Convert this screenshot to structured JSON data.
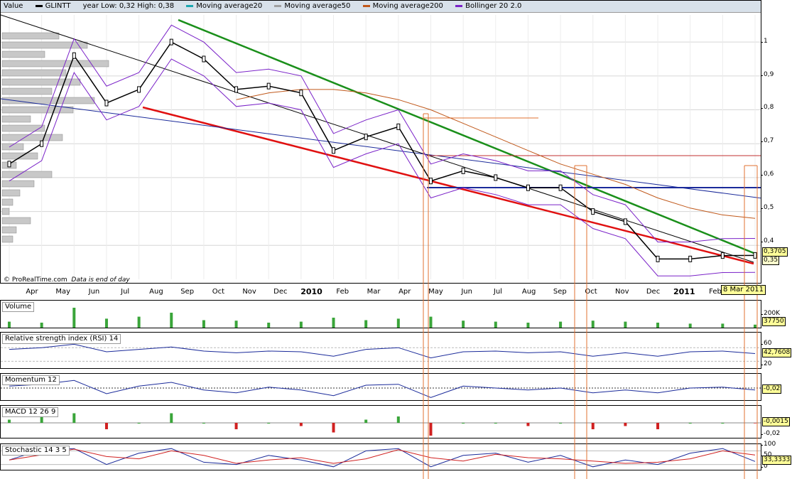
{
  "legend": {
    "value_label": "Value",
    "items": [
      {
        "label": "GLINTT",
        "color": "#000000"
      },
      {
        "label": "year Low: 0,32 High: 0,38",
        "color": ""
      },
      {
        "label": "Moving average20",
        "color": "#1aa7b0"
      },
      {
        "label": "Moving average50",
        "color": "#a0a0a0"
      },
      {
        "label": "Moving average200",
        "color": "#c0581a"
      },
      {
        "label": "Bollinger 20 2.0",
        "color": "#7a22c8"
      }
    ]
  },
  "credit": {
    "brand": "© ProRealTime.com",
    "note": "Data is end of day"
  },
  "date_marker": "8 Mar 2011",
  "price_axis": [
    "1",
    "0,9",
    "0,8",
    "0,7",
    "0,6",
    "0,5",
    "0,4"
  ],
  "price_values": {
    "last": "0,3705",
    "low": "0,35"
  },
  "x_labels": [
    {
      "label": "Apr",
      "year": false
    },
    {
      "label": "May",
      "year": false
    },
    {
      "label": "Jun",
      "year": false
    },
    {
      "label": "Jul",
      "year": false
    },
    {
      "label": "Aug",
      "year": false
    },
    {
      "label": "Sep",
      "year": false
    },
    {
      "label": "Oct",
      "year": false
    },
    {
      "label": "Nov",
      "year": false
    },
    {
      "label": "Dec",
      "year": false
    },
    {
      "label": "2010",
      "year": true
    },
    {
      "label": "Feb",
      "year": false
    },
    {
      "label": "Mar",
      "year": false
    },
    {
      "label": "Apr",
      "year": false
    },
    {
      "label": "May",
      "year": false
    },
    {
      "label": "Jun",
      "year": false
    },
    {
      "label": "Jul",
      "year": false
    },
    {
      "label": "Aug",
      "year": false
    },
    {
      "label": "Sep",
      "year": false
    },
    {
      "label": "Oct",
      "year": false
    },
    {
      "label": "Nov",
      "year": false
    },
    {
      "label": "Dec",
      "year": false
    },
    {
      "label": "2011",
      "year": true
    },
    {
      "label": "Feb",
      "year": false
    }
  ],
  "panes": {
    "volume": {
      "title": "Volume",
      "axis": [
        "200K"
      ],
      "value": "37750"
    },
    "rsi": {
      "title": "Relative strength index (RSI) 14",
      "axis": [
        "60",
        "20"
      ],
      "value": "42,7608"
    },
    "momentum": {
      "title": "Momentum 12",
      "axis": [],
      "value": "-0,02"
    },
    "macd": {
      "title": "MACD 12 26 9",
      "axis": [
        "-0,02"
      ],
      "value": "-0,0015"
    },
    "stochastic": {
      "title": "Stochastic 14 3 5",
      "axis": [
        "100",
        "50",
        "0"
      ],
      "value": "33,3333"
    }
  },
  "chart_data": {
    "type": "line",
    "title": "GLINTT",
    "ylim": [
      0.3,
      1.08
    ],
    "x": [
      "2009-04",
      "2009-05",
      "2009-06",
      "2009-07",
      "2009-08",
      "2009-09",
      "2009-10",
      "2009-11",
      "2009-12",
      "2010-01",
      "2010-02",
      "2010-03",
      "2010-04",
      "2010-05",
      "2010-06",
      "2010-07",
      "2010-08",
      "2010-09",
      "2010-10",
      "2010-11",
      "2010-12",
      "2011-01",
      "2011-02",
      "2011-03"
    ],
    "series": [
      {
        "name": "GLINTT",
        "values": [
          0.64,
          0.7,
          0.96,
          0.82,
          0.86,
          1.0,
          0.95,
          0.86,
          0.87,
          0.85,
          0.68,
          0.72,
          0.75,
          0.59,
          0.62,
          0.6,
          0.57,
          0.57,
          0.5,
          0.47,
          0.36,
          0.36,
          0.37,
          0.3705
        ]
      },
      {
        "name": "Moving average200",
        "values": [
          null,
          null,
          null,
          null,
          null,
          null,
          null,
          0.83,
          0.85,
          0.86,
          0.86,
          0.85,
          0.83,
          0.8,
          0.76,
          0.72,
          0.68,
          0.64,
          0.61,
          0.58,
          0.54,
          0.51,
          0.49,
          0.48
        ]
      }
    ],
    "volume": [
      12,
      10,
      40,
      18,
      22,
      30,
      15,
      14,
      10,
      12,
      20,
      15,
      18,
      22,
      14,
      12,
      10,
      12,
      14,
      12,
      10,
      8,
      8,
      6
    ],
    "rsi": [
      55,
      60,
      70,
      48,
      55,
      62,
      50,
      45,
      50,
      48,
      35,
      55,
      60,
      30,
      48,
      50,
      45,
      48,
      35,
      45,
      35,
      48,
      50,
      42.76
    ],
    "momentum": [
      0.02,
      0.04,
      0.08,
      -0.06,
      0.02,
      0.06,
      -0.02,
      -0.05,
      0.01,
      -0.02,
      -0.08,
      0.03,
      0.04,
      -0.1,
      0.02,
      0.0,
      -0.02,
      0.0,
      -0.05,
      -0.02,
      -0.05,
      0.0,
      0.01,
      -0.02
    ],
    "macd": [
      0.01,
      0.02,
      0.03,
      -0.02,
      0.0,
      0.03,
      0.0,
      -0.02,
      0.0,
      -0.01,
      -0.03,
      0.01,
      0.02,
      -0.04,
      0.0,
      0.0,
      -0.01,
      0.0,
      -0.02,
      -0.01,
      -0.02,
      0.0,
      0.0,
      -0.0015
    ],
    "stochastic": [
      40,
      85,
      90,
      20,
      70,
      90,
      30,
      20,
      60,
      40,
      10,
      80,
      90,
      10,
      60,
      70,
      30,
      60,
      10,
      40,
      20,
      70,
      90,
      33.33
    ]
  }
}
